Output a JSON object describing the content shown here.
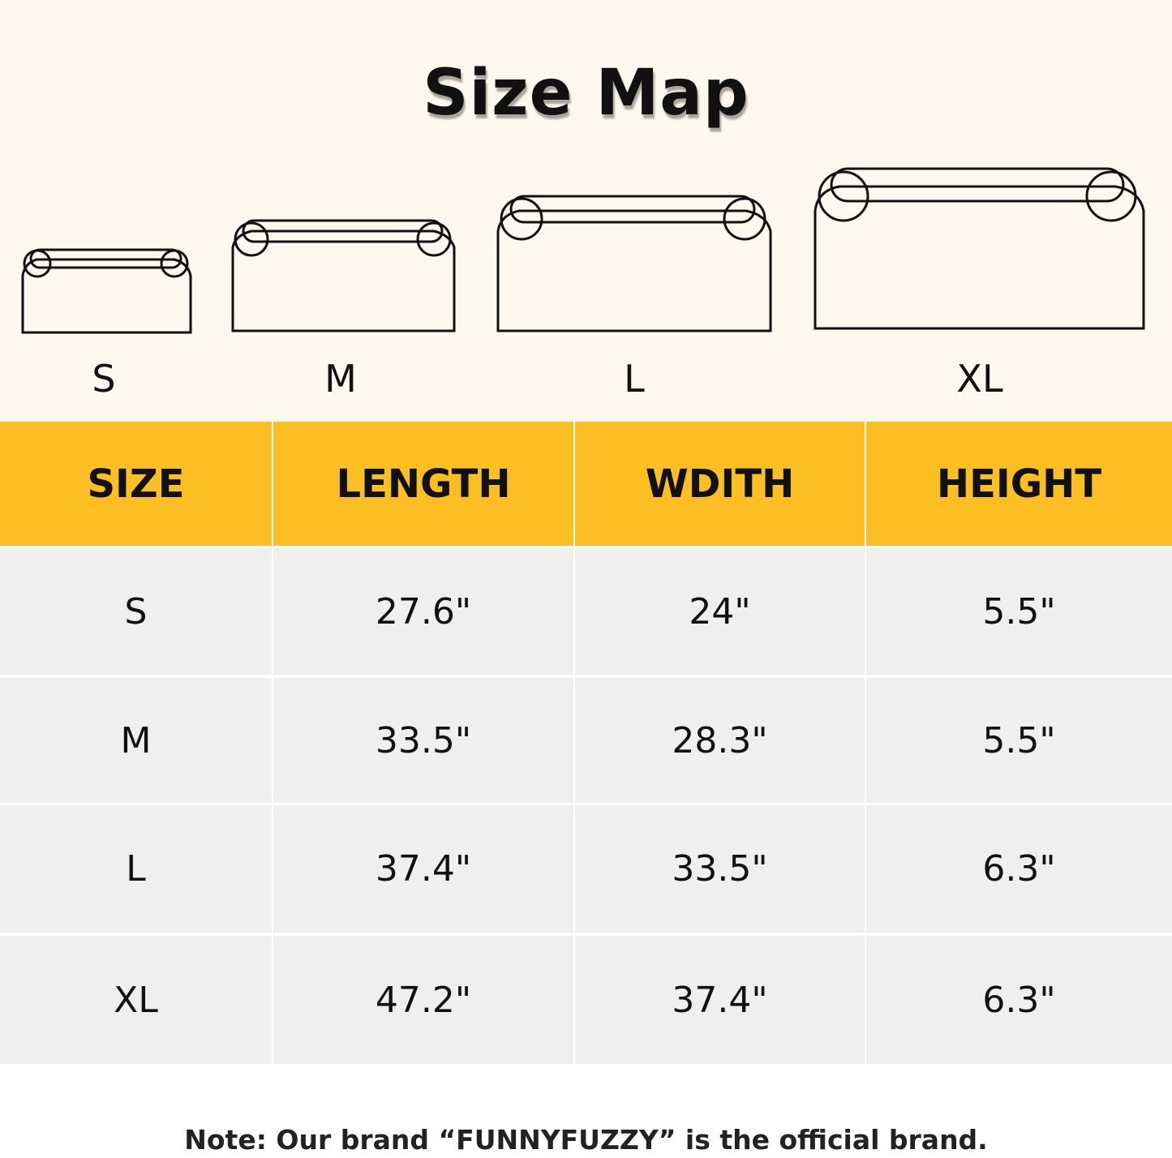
{
  "title": "Size Map",
  "size_labels": [
    "S",
    "M",
    "L",
    "XL"
  ],
  "table": {
    "headers": [
      "SIZE",
      "LENGTH",
      "WDITH",
      "HEIGHT"
    ],
    "rows": [
      [
        "S",
        "27.6\"",
        "24\"",
        "5.5\""
      ],
      [
        "M",
        "33.5\"",
        "28.3\"",
        "5.5\""
      ],
      [
        "L",
        "37.4\"",
        "33.5\"",
        "6.3\""
      ],
      [
        "XL",
        "47.2\"",
        "37.4\"",
        "6.3\""
      ]
    ]
  },
  "note": "Note: Our brand “FUNNYFUZZY” is the official brand.",
  "colors": {
    "background": "#fcf8ee",
    "header": "#fbbf24",
    "row": "#efefef"
  }
}
